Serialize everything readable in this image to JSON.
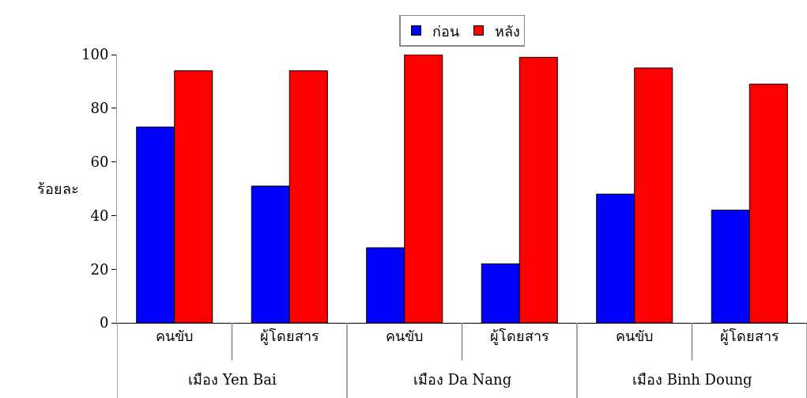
{
  "chart_data": {
    "type": "bar",
    "ylabel": "ร้อยละ",
    "categories": [
      "คนขับ",
      "ผู้โดยสาร",
      "คนขับ",
      "ผู้โดยสาร",
      "คนขับ",
      "ผู้โดยสาร"
    ],
    "annotations": [
      "เมือง Yen Bai",
      "เมือง Da Nang",
      "เมือง Binh Doung"
    ],
    "series": [
      {
        "name": "ก่อน",
        "color": "#0000ff",
        "values": [
          73,
          51,
          28,
          22,
          48,
          42
        ]
      },
      {
        "name": "หลัง",
        "color": "#ff0000",
        "values": [
          94,
          94,
          100,
          99,
          95,
          89
        ]
      }
    ],
    "ylim": [
      0,
      100
    ],
    "yticks": [
      0,
      20,
      40,
      60,
      80,
      100
    ],
    "grid": false,
    "legend": "top"
  }
}
